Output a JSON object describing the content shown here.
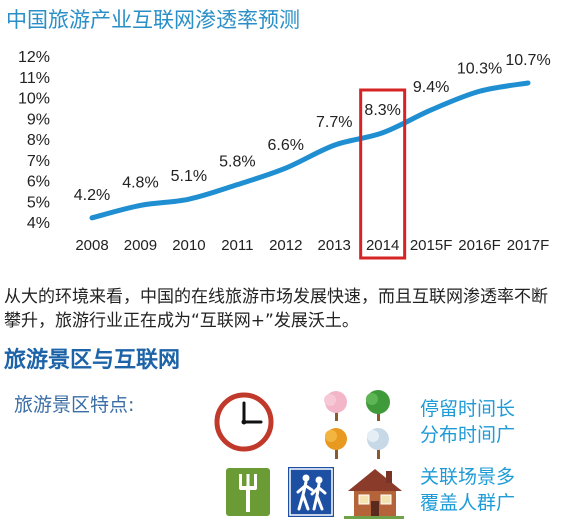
{
  "chart_data": {
    "type": "line",
    "title": "中国旅游产业互联网渗透率预测",
    "categories": [
      "2008",
      "2009",
      "2010",
      "2011",
      "2012",
      "2013",
      "2014",
      "2015F",
      "2016F",
      "2017F"
    ],
    "values": [
      4.2,
      4.8,
      5.1,
      5.8,
      6.6,
      7.7,
      8.3,
      9.4,
      10.3,
      10.7
    ],
    "data_labels": [
      "4.2%",
      "4.8%",
      "5.1%",
      "5.8%",
      "6.6%",
      "7.7%",
      "8.3%",
      "9.4%",
      "10.3%",
      "10.7%"
    ],
    "y_ticks": [
      "4%",
      "5%",
      "6%",
      "7%",
      "8%",
      "9%",
      "10%",
      "11%",
      "12%"
    ],
    "ylim": [
      4,
      12
    ],
    "highlight_category": "2014",
    "line_color": "#1f8fd2",
    "highlight_color": "#d62424"
  },
  "paragraph": "从大的环境来看，中国的在线旅游市场发展快速，而且互联网渗透率不断攀升，旅游行业正在成为“互联网+”发展沃土。",
  "section_title": "旅游景区与互联网",
  "features": {
    "label": "旅游景区特点:",
    "group1": {
      "line1": "停留时间长",
      "line2": "分布时间广",
      "icons": [
        "clock-icon",
        "seasons-trees-icon"
      ]
    },
    "group2": {
      "line1": "关联场景多",
      "line2": "覆盖人群广",
      "icons": [
        "restaurant-icon",
        "hikers-sign-icon",
        "house-icon"
      ]
    }
  }
}
